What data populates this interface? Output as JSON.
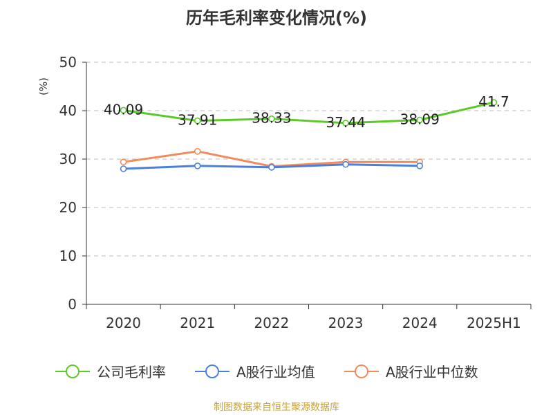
{
  "chart_data": {
    "type": "line",
    "title": "历年毛利率变化情况(%)",
    "ylabel": "(%)",
    "categories": [
      "2020",
      "2021",
      "2022",
      "2023",
      "2024",
      "2025H1"
    ],
    "ylim": [
      0,
      50
    ],
    "yticks": [
      0,
      10,
      20,
      30,
      40,
      50
    ],
    "grid": true,
    "legend_position": "bottom",
    "series": [
      {
        "name": "公司毛利率",
        "color": "#5cc928",
        "values": [
          40.09,
          37.91,
          38.33,
          37.44,
          38.09,
          41.7
        ],
        "labels": [
          "40.09",
          "37.91",
          "38.33",
          "37.44",
          "38.09",
          "41.7"
        ]
      },
      {
        "name": "A股行业均值",
        "color": "#4a7fe0",
        "values": [
          28.0,
          28.6,
          28.3,
          28.9,
          28.6,
          null
        ]
      },
      {
        "name": "A股行业中位数",
        "color": "#f28b5c",
        "values": [
          29.4,
          31.6,
          28.5,
          29.4,
          29.4,
          null
        ]
      }
    ]
  },
  "source": {
    "text": "制图数据来自恒生聚源数据库",
    "color": "#c9a23a"
  },
  "ylabel_color": "#e02020"
}
